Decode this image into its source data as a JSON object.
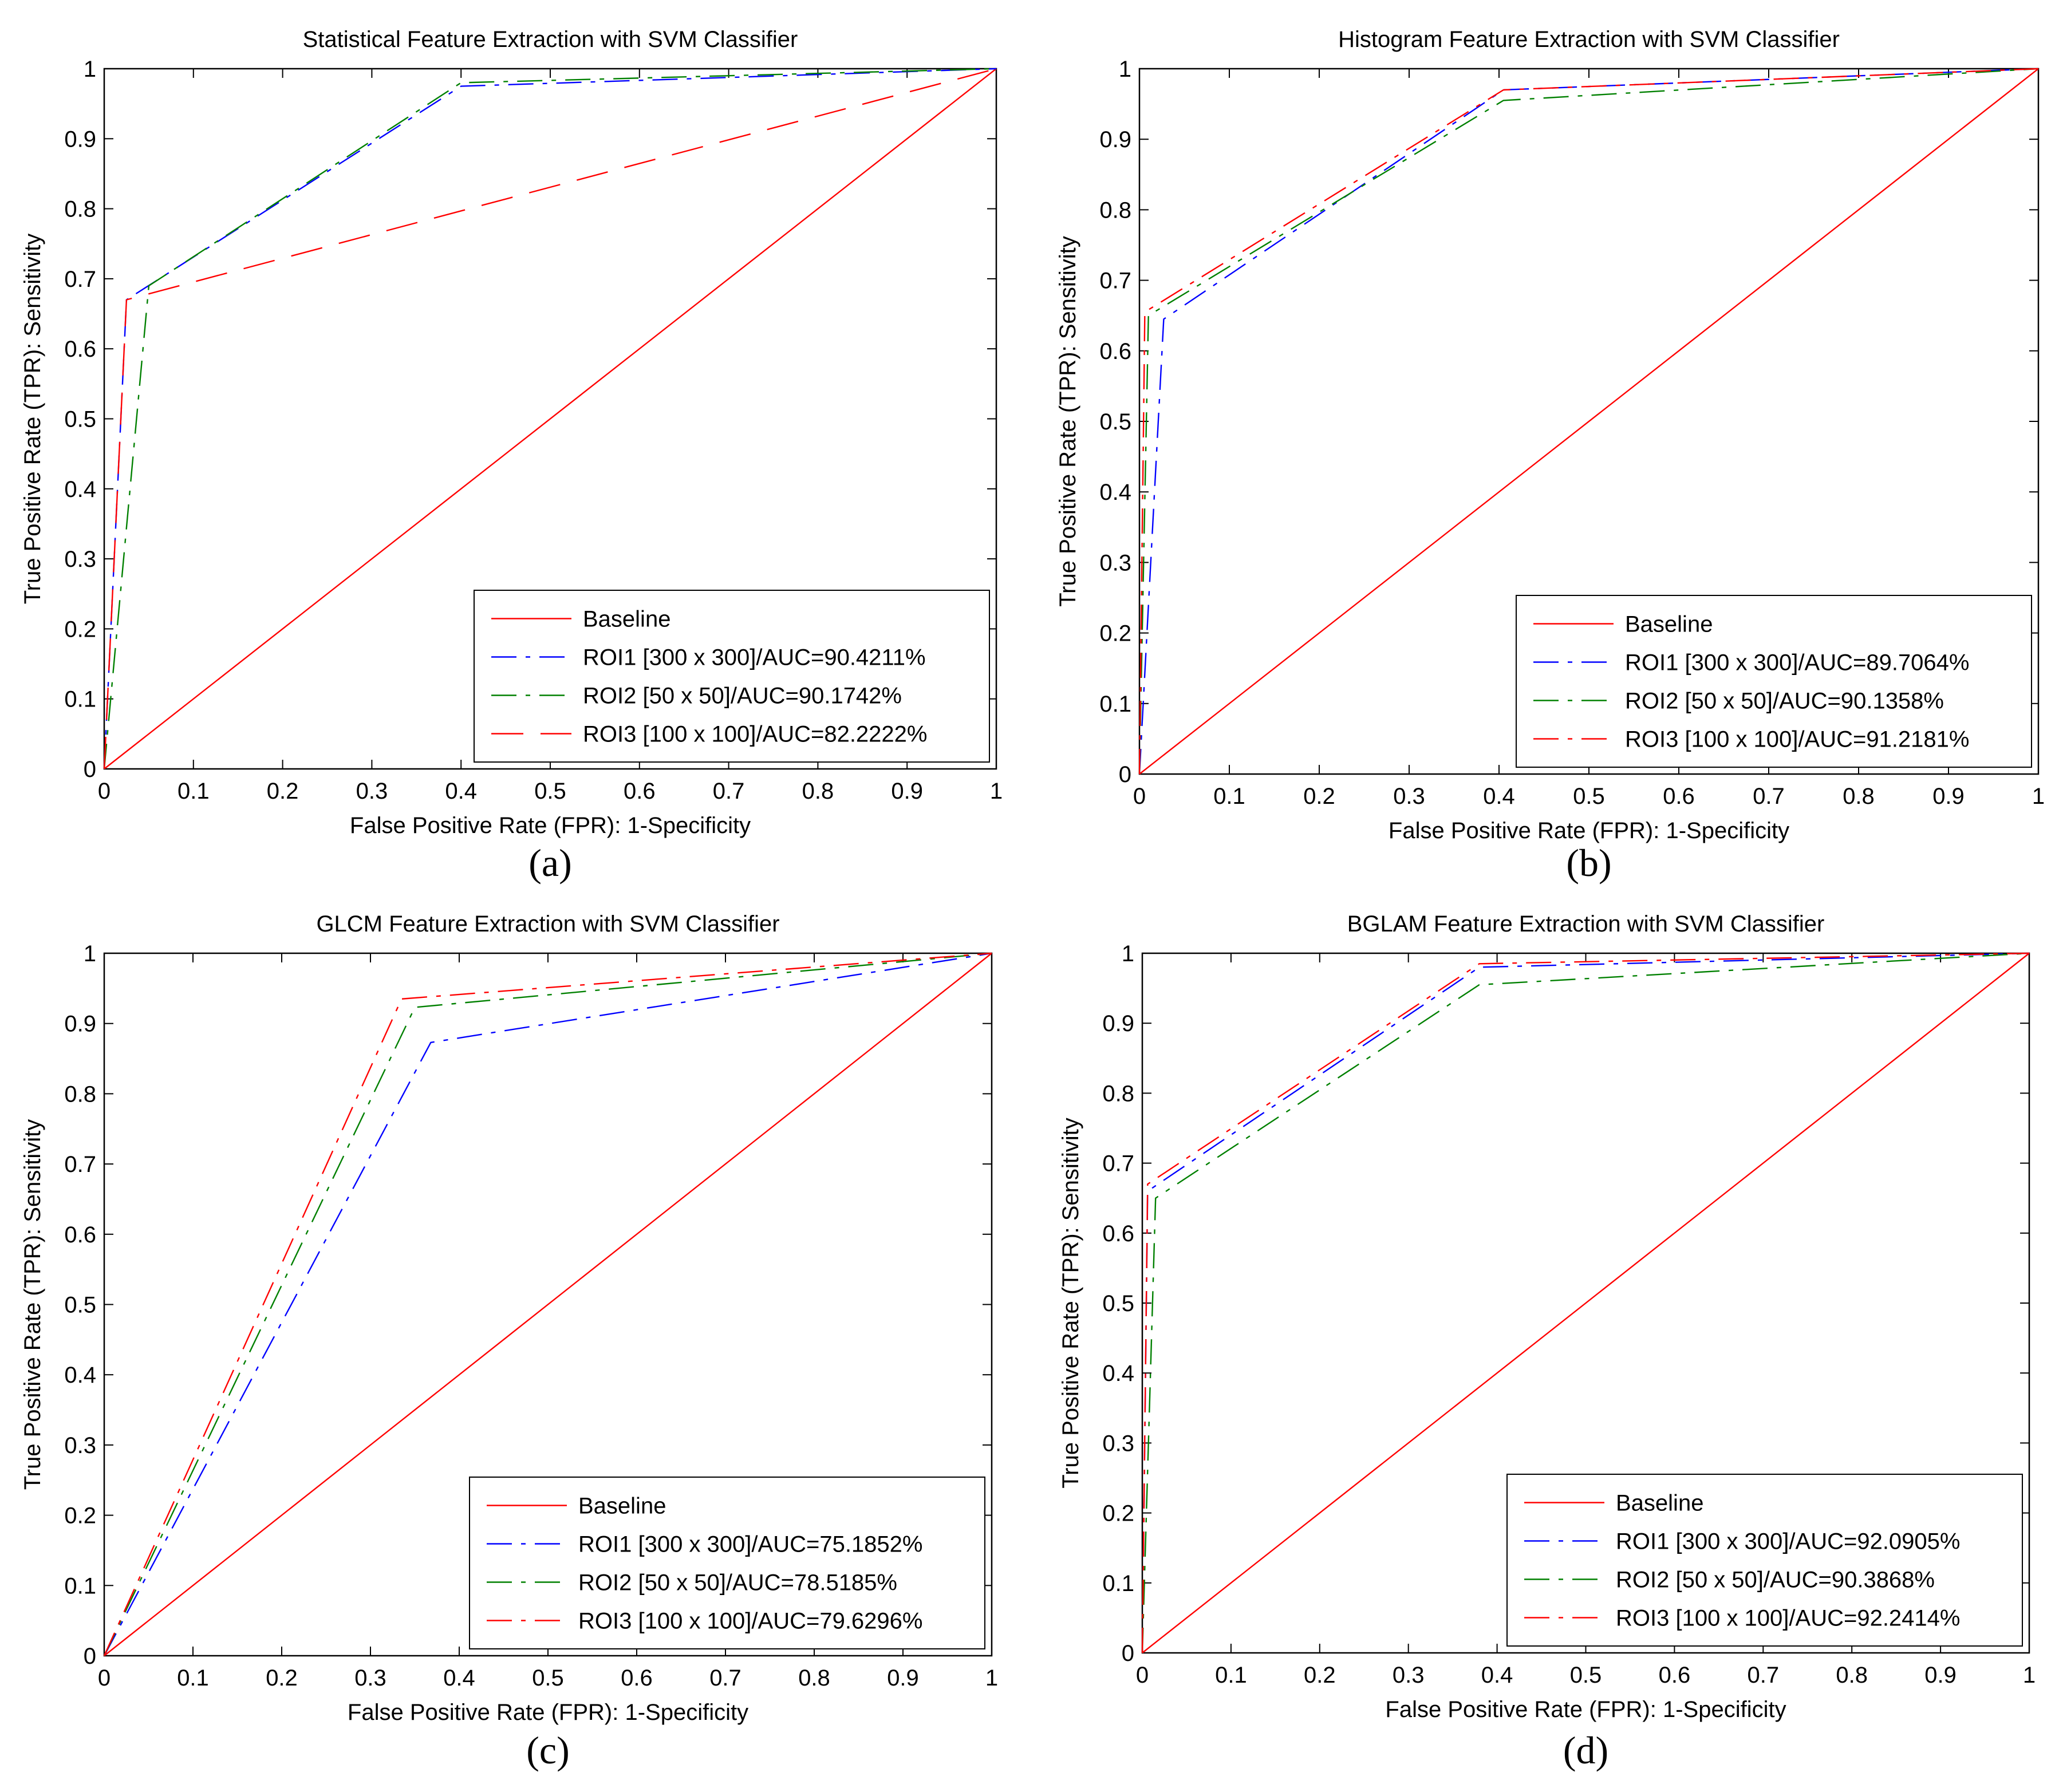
{
  "chart_data": [
    {
      "type": "line",
      "panel_label": "(a)",
      "title": "Statistical Feature Extraction with SVM Classifier",
      "xlabel": "False Positive Rate (FPR):  1-Specificity",
      "ylabel": "True  Positive Rate (TPR):  Sensitivity",
      "xlim": [
        0,
        1
      ],
      "ylim": [
        0,
        1
      ],
      "xticks": [
        "0",
        "0.1",
        "0.2",
        "0.3",
        "0.4",
        "0.5",
        "0.6",
        "0.7",
        "0.8",
        "0.9",
        "1"
      ],
      "yticks": [
        "0",
        "0.1",
        "0.2",
        "0.3",
        "0.4",
        "0.5",
        "0.6",
        "0.7",
        "0.8",
        "0.9",
        "1"
      ],
      "legend_position": "bottom-right",
      "series": [
        {
          "name": "Baseline",
          "color": "#ff0000",
          "style": "solid",
          "x": [
            0,
            1
          ],
          "y": [
            0,
            1
          ]
        },
        {
          "name": "ROI1 [300 x 300]/AUC=90.4211%",
          "color": "#0000ff",
          "style": "dashdot",
          "x": [
            0,
            0.025,
            0.4,
            1
          ],
          "y": [
            0,
            0.67,
            0.975,
            1
          ]
        },
        {
          "name": "ROI2 [50 x 50]/AUC=90.1742%",
          "color": "#008000",
          "style": "dashdot",
          "x": [
            0,
            0.05,
            0.4,
            1
          ],
          "y": [
            0,
            0.69,
            0.98,
            1
          ]
        },
        {
          "name": "ROI3 [100 x 100]/AUC=82.2222%",
          "color": "#ff0000",
          "style": "dashed",
          "x": [
            0,
            0.025,
            1
          ],
          "y": [
            0,
            0.67,
            1
          ]
        }
      ]
    },
    {
      "type": "line",
      "panel_label": "(b)",
      "title": "Histogram Feature Extraction with SVM Classifier",
      "xlabel": "False Positive Rate (FPR):  1-Specificity",
      "ylabel": "True  Positive Rate (TPR):  Sensitivity",
      "xlim": [
        0,
        1
      ],
      "ylim": [
        0,
        1
      ],
      "xticks": [
        "0",
        "0.1",
        "0.2",
        "0.3",
        "0.4",
        "0.5",
        "0.6",
        "0.7",
        "0.8",
        "0.9",
        "1"
      ],
      "yticks": [
        "0",
        "0.1",
        "0.2",
        "0.3",
        "0.4",
        "0.5",
        "0.6",
        "0.7",
        "0.8",
        "0.9",
        "1"
      ],
      "legend_position": "bottom-right",
      "series": [
        {
          "name": "Baseline",
          "color": "#ff0000",
          "style": "solid",
          "x": [
            0,
            1
          ],
          "y": [
            0,
            1
          ]
        },
        {
          "name": "ROI1 [300 x 300]/AUC=89.7064%",
          "color": "#0000ff",
          "style": "dashdot",
          "x": [
            0,
            0.027,
            0.405,
            1
          ],
          "y": [
            0,
            0.645,
            0.97,
            1
          ]
        },
        {
          "name": "ROI2 [50 x 50]/AUC=90.1358%",
          "color": "#008000",
          "style": "dashdot",
          "x": [
            0,
            0.01,
            0.405,
            1
          ],
          "y": [
            0,
            0.65,
            0.955,
            1
          ]
        },
        {
          "name": "ROI3 [100 x 100]/AUC=91.2181%",
          "color": "#ff0000",
          "style": "dashdot",
          "x": [
            0,
            0.006,
            0.405,
            1
          ],
          "y": [
            0,
            0.655,
            0.97,
            1
          ]
        }
      ]
    },
    {
      "type": "line",
      "panel_label": "(c)",
      "title": "GLCM Feature Extraction with SVM Classifier",
      "xlabel": "False Positive Rate (FPR):  1-Specificity",
      "ylabel": "True  Positive Rate (TPR):  Sensitivity",
      "xlim": [
        0,
        1
      ],
      "ylim": [
        0,
        1
      ],
      "xticks": [
        "0",
        "0.1",
        "0.2",
        "0.3",
        "0.4",
        "0.5",
        "0.6",
        "0.7",
        "0.8",
        "0.9",
        "1"
      ],
      "yticks": [
        "0",
        "0.1",
        "0.2",
        "0.3",
        "0.4",
        "0.5",
        "0.6",
        "0.7",
        "0.8",
        "0.9",
        "1"
      ],
      "legend_position": "bottom-right",
      "series": [
        {
          "name": "Baseline",
          "color": "#ff0000",
          "style": "solid",
          "x": [
            0,
            1
          ],
          "y": [
            0,
            1
          ]
        },
        {
          "name": "ROI1 [300 x 300]/AUC=75.1852%",
          "color": "#0000ff",
          "style": "dashdot",
          "x": [
            0,
            0.368,
            1
          ],
          "y": [
            0,
            0.873,
            1
          ]
        },
        {
          "name": "ROI2 [50 x 50]/AUC=78.5185%",
          "color": "#008000",
          "style": "dashdot",
          "x": [
            0,
            0.35,
            1
          ],
          "y": [
            0,
            0.923,
            1
          ]
        },
        {
          "name": "ROI3 [100 x 100]/AUC=79.6296%",
          "color": "#ff0000",
          "style": "dashdot",
          "x": [
            0,
            0.335,
            1
          ],
          "y": [
            0,
            0.935,
            1
          ]
        }
      ]
    },
    {
      "type": "line",
      "panel_label": "(d)",
      "title": "BGLAM Feature Extraction with SVM Classifier",
      "xlabel": "False Positive Rate (FPR):  1-Specificity",
      "ylabel": "True  Positive Rate (TPR):  Sensitivity",
      "xlim": [
        0,
        1
      ],
      "ylim": [
        0,
        1
      ],
      "xticks": [
        "0",
        "0.1",
        "0.2",
        "0.3",
        "0.4",
        "0.5",
        "0.6",
        "0.7",
        "0.8",
        "0.9",
        "1"
      ],
      "yticks": [
        "0",
        "0.1",
        "0.2",
        "0.3",
        "0.4",
        "0.5",
        "0.6",
        "0.7",
        "0.8",
        "0.9",
        "1"
      ],
      "legend_position": "bottom-right",
      "series": [
        {
          "name": "Baseline",
          "color": "#ff0000",
          "style": "solid",
          "x": [
            0,
            1
          ],
          "y": [
            0,
            1
          ]
        },
        {
          "name": "ROI1 [300 x 300]/AUC=92.0905%",
          "color": "#0000ff",
          "style": "dashdot",
          "x": [
            0,
            0.006,
            0.38,
            1
          ],
          "y": [
            0,
            0.66,
            0.98,
            1
          ]
        },
        {
          "name": "ROI2 [50 x 50]/AUC=90.3868%",
          "color": "#008000",
          "style": "dashdot",
          "x": [
            0,
            0.015,
            0.38,
            1
          ],
          "y": [
            0,
            0.65,
            0.955,
            1
          ]
        },
        {
          "name": "ROI3 [100 x 100]/AUC=92.2414%",
          "color": "#ff0000",
          "style": "dashdot",
          "x": [
            0,
            0.006,
            0.38,
            1
          ],
          "y": [
            0,
            0.67,
            0.985,
            1
          ]
        }
      ]
    }
  ]
}
